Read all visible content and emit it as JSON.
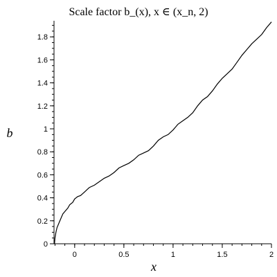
{
  "chart_data": {
    "type": "line",
    "title": "Scale factor b_(x), x ∈ (x_n, 2)",
    "xlabel": "x",
    "ylabel": "b",
    "xlim": [
      -0.21,
      2.0
    ],
    "ylim": [
      0,
      1.94
    ],
    "x_ticks": [
      {
        "value": 0,
        "label": "0"
      },
      {
        "value": 0.5,
        "label": "0.5"
      },
      {
        "value": 1,
        "label": "1"
      },
      {
        "value": 1.5,
        "label": "1.5"
      },
      {
        "value": 2,
        "label": "2"
      }
    ],
    "y_ticks": [
      {
        "value": 0,
        "label": "0"
      },
      {
        "value": 0.2,
        "label": "0.2"
      },
      {
        "value": 0.4,
        "label": "0.4"
      },
      {
        "value": 0.6,
        "label": "0.6"
      },
      {
        "value": 0.8,
        "label": "0.8"
      },
      {
        "value": 1,
        "label": "1"
      },
      {
        "value": 1.2,
        "label": "1.2"
      },
      {
        "value": 1.4,
        "label": "1.4"
      },
      {
        "value": 1.6,
        "label": "1.6"
      },
      {
        "value": 1.8,
        "label": "1.8"
      }
    ],
    "minor_tick_step_x": 0.1,
    "minor_tick_step_y": 0.05,
    "grid": false,
    "legend": "none",
    "series": [
      {
        "color": "#000000",
        "x": [
          -0.205,
          -0.2,
          -0.19,
          -0.18,
          -0.16,
          -0.14,
          -0.12,
          -0.1,
          -0.07,
          -0.05,
          -0.02,
          0.0,
          0.03,
          0.06,
          0.1,
          0.15,
          0.2,
          0.25,
          0.3,
          0.35,
          0.4,
          0.45,
          0.5,
          0.55,
          0.6,
          0.65,
          0.7,
          0.75,
          0.8,
          0.85,
          0.9,
          0.95,
          1.0,
          1.05,
          1.1,
          1.15,
          1.2,
          1.25,
          1.3,
          1.35,
          1.4,
          1.45,
          1.5,
          1.55,
          1.6,
          1.65,
          1.7,
          1.75,
          1.8,
          1.85,
          1.9,
          1.95,
          2.0
        ],
        "y": [
          0.0,
          0.05,
          0.1,
          0.14,
          0.18,
          0.22,
          0.26,
          0.28,
          0.31,
          0.34,
          0.36,
          0.39,
          0.41,
          0.42,
          0.45,
          0.49,
          0.51,
          0.54,
          0.57,
          0.59,
          0.62,
          0.66,
          0.68,
          0.7,
          0.73,
          0.77,
          0.79,
          0.81,
          0.85,
          0.9,
          0.93,
          0.95,
          0.99,
          1.04,
          1.07,
          1.1,
          1.14,
          1.2,
          1.25,
          1.28,
          1.33,
          1.39,
          1.44,
          1.48,
          1.52,
          1.58,
          1.64,
          1.69,
          1.74,
          1.78,
          1.82,
          1.88,
          1.93
        ]
      }
    ]
  }
}
